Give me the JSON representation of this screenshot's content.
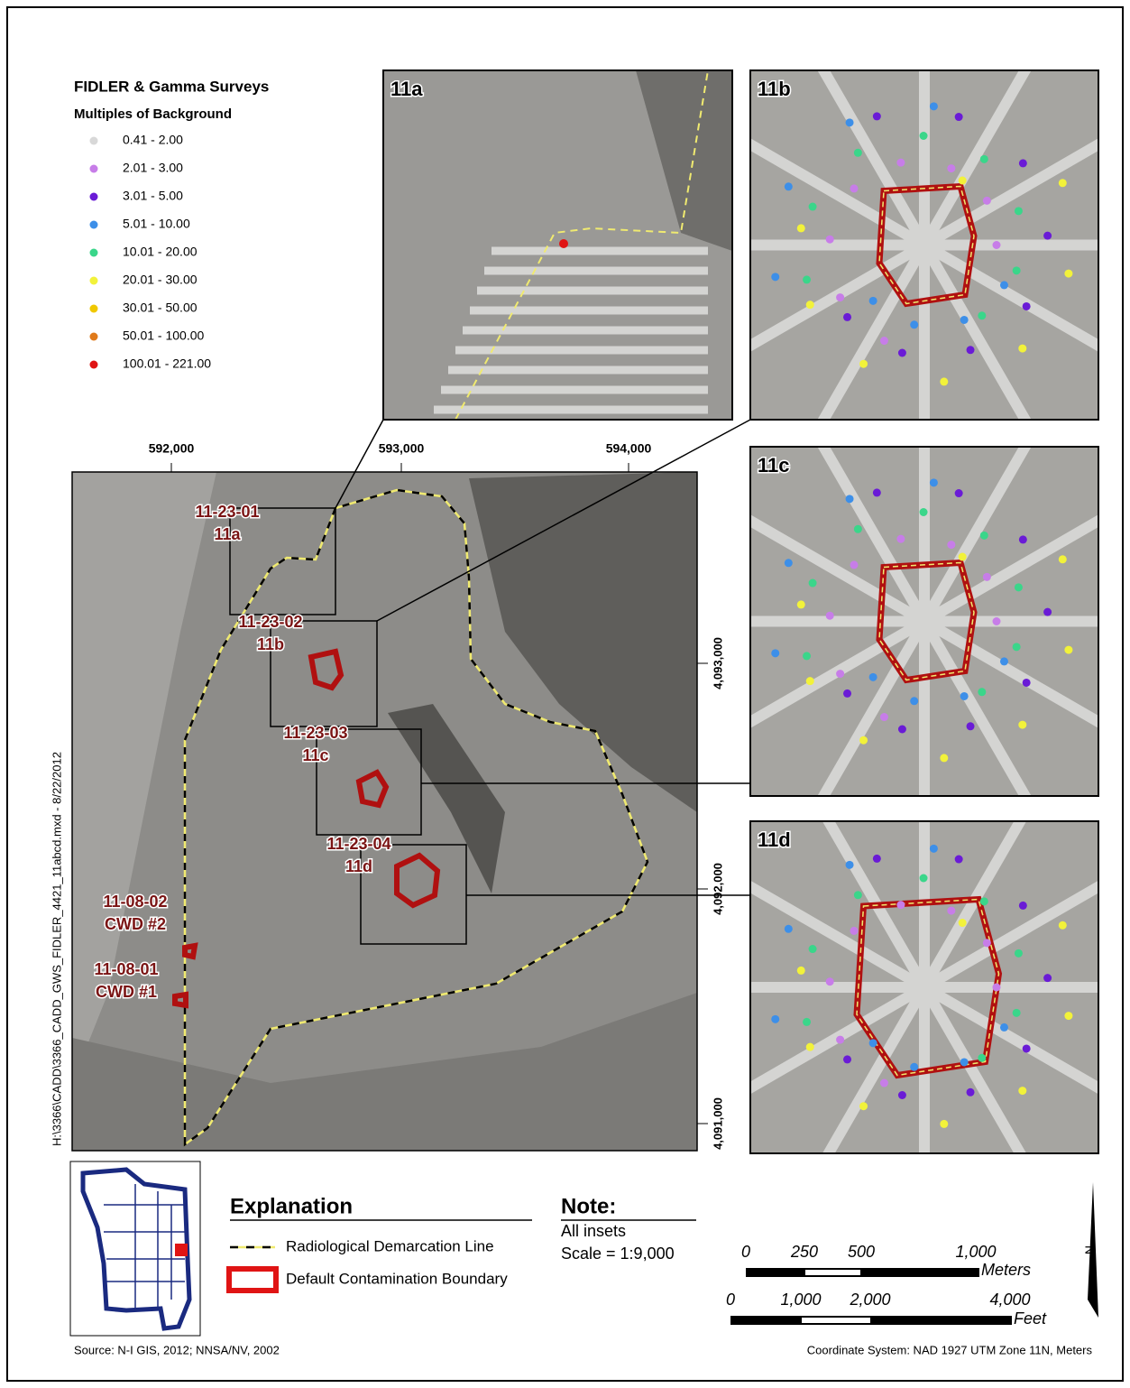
{
  "legend": {
    "title": "FIDLER & Gamma Surveys",
    "subtitle": "Multiples of Background",
    "items": [
      {
        "label": "0.41 - 2.00",
        "color": "#d8d8d8"
      },
      {
        "label": "2.01 - 3.00",
        "color": "#c77de8"
      },
      {
        "label": "3.01 - 5.00",
        "color": "#6a1bd6"
      },
      {
        "label": "5.01 - 10.00",
        "color": "#3d8fe8"
      },
      {
        "label": "10.01 - 20.00",
        "color": "#3ad68a"
      },
      {
        "label": "20.01 - 30.00",
        "color": "#f2f23a"
      },
      {
        "label": "30.01 - 50.00",
        "color": "#f0c800"
      },
      {
        "label": "50.01 - 100.00",
        "color": "#e07a1a"
      },
      {
        "label": "100.01 - 221.00",
        "color": "#e01414"
      }
    ]
  },
  "insets": [
    "11a",
    "11b",
    "11c",
    "11d"
  ],
  "main_map": {
    "x_labels": [
      "592,000",
      "593,000",
      "594,000"
    ],
    "y_labels": [
      "4,093,000",
      "4,092,000",
      "4,091,000"
    ],
    "sites": [
      {
        "id": "11-23-01",
        "label": "11a"
      },
      {
        "id": "11-23-02",
        "label": "11b"
      },
      {
        "id": "11-23-03",
        "label": "11c"
      },
      {
        "id": "11-23-04",
        "label": "11d"
      },
      {
        "id": "11-08-02",
        "label": "CWD #2"
      },
      {
        "id": "11-08-01",
        "label": "CWD #1"
      }
    ]
  },
  "side_text": "H:\\3366\\CADD\\3366_CADD_GWS_FIDLER_4421_11abcd.mxd - 8/22/2012",
  "explanation": {
    "title": "Explanation",
    "items": [
      "Radiological Demarcation Line",
      "Default Contamination Boundary"
    ]
  },
  "note": {
    "title": "Note:",
    "lines": [
      "All insets",
      "Scale = 1:9,000"
    ]
  },
  "scale_bar": {
    "meters": {
      "labels": [
        "0",
        "250",
        "500",
        "1,000"
      ],
      "unit": "Meters"
    },
    "feet": {
      "labels": [
        "0",
        "1,000",
        "2,000",
        "4,000"
      ],
      "unit": "Feet"
    }
  },
  "north": "N",
  "source": "Source: N-I GIS, 2012; NNSA/NV, 2002",
  "coordinate_system": "Coordinate System: NAD 1927 UTM Zone 11N, Meters"
}
